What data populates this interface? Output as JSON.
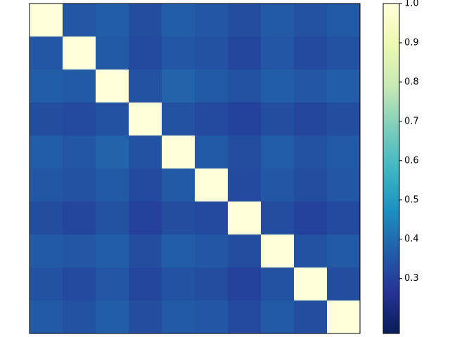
{
  "chart_data": {
    "type": "heatmap",
    "values": [
      [
        1.0,
        0.35,
        0.37,
        0.33,
        0.37,
        0.35,
        0.33,
        0.36,
        0.34,
        0.36
      ],
      [
        0.35,
        1.0,
        0.36,
        0.32,
        0.35,
        0.34,
        0.31,
        0.35,
        0.32,
        0.34
      ],
      [
        0.37,
        0.36,
        1.0,
        0.34,
        0.38,
        0.36,
        0.34,
        0.37,
        0.35,
        0.37
      ],
      [
        0.33,
        0.32,
        0.34,
        1.0,
        0.34,
        0.32,
        0.3,
        0.33,
        0.31,
        0.33
      ],
      [
        0.37,
        0.35,
        0.38,
        0.34,
        1.0,
        0.36,
        0.33,
        0.37,
        0.34,
        0.36
      ],
      [
        0.35,
        0.34,
        0.36,
        0.32,
        0.36,
        1.0,
        0.32,
        0.35,
        0.33,
        0.35
      ],
      [
        0.33,
        0.31,
        0.34,
        0.3,
        0.33,
        0.32,
        1.0,
        0.33,
        0.3,
        0.32
      ],
      [
        0.36,
        0.35,
        0.37,
        0.33,
        0.37,
        0.35,
        0.33,
        1.0,
        0.34,
        0.36
      ],
      [
        0.34,
        0.32,
        0.35,
        0.31,
        0.34,
        0.33,
        0.3,
        0.34,
        1.0,
        0.33
      ],
      [
        0.36,
        0.34,
        0.37,
        0.33,
        0.36,
        0.35,
        0.32,
        0.36,
        0.33,
        1.0
      ]
    ],
    "colorscale": [
      "#081d58",
      "#253494",
      "#225ea8",
      "#1d91c0",
      "#41b6c4",
      "#7fcdbb",
      "#c7e9b4",
      "#edf8b1",
      "#ffffd9"
    ],
    "clim": [
      0.16,
      1.0
    ],
    "cticks": [
      {
        "value": 0.3,
        "label": "0.3"
      },
      {
        "value": 0.4,
        "label": "0.4"
      },
      {
        "value": 0.5,
        "label": "0.5"
      },
      {
        "value": 0.6,
        "label": "0.6"
      },
      {
        "value": 0.7,
        "label": "0.7"
      },
      {
        "value": 0.8,
        "label": "0.8"
      },
      {
        "value": 0.9,
        "label": "0.9"
      },
      {
        "value": 1.0,
        "label": "1.0"
      }
    ]
  }
}
